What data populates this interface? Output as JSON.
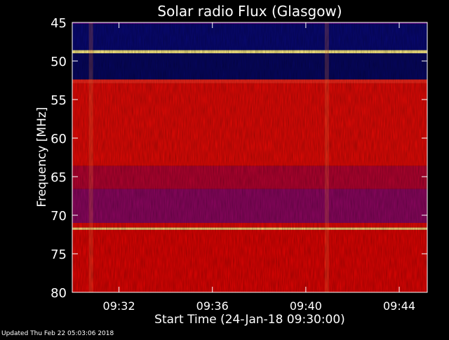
{
  "chart_data": {
    "type": "heatmap",
    "title": "Solar radio Flux (Glasgow)",
    "xlabel": "Start Time (24-Jan-18 09:30:00)",
    "ylabel": "Frequency [MHz]",
    "footer": "Updated Thu Feb 22 05:03:06 2018",
    "x_range_minutes": [
      0,
      15.2
    ],
    "y_range_mhz": [
      45,
      80
    ],
    "x_ticks": [
      {
        "label": "09:32",
        "minutes": 2
      },
      {
        "label": "09:36",
        "minutes": 6
      },
      {
        "label": "09:40",
        "minutes": 10
      },
      {
        "label": "09:44",
        "minutes": 14
      }
    ],
    "y_ticks": [
      {
        "label": "45",
        "mhz": 45
      },
      {
        "label": "50",
        "mhz": 50
      },
      {
        "label": "55",
        "mhz": 55
      },
      {
        "label": "60",
        "mhz": 60
      },
      {
        "label": "65",
        "mhz": 65
      },
      {
        "label": "70",
        "mhz": 70
      },
      {
        "label": "75",
        "mhz": 75
      },
      {
        "label": "80",
        "mhz": 80
      }
    ],
    "frequency_bands": [
      {
        "from_mhz": 45.0,
        "to_mhz": 45.2,
        "intensity": 0.35
      },
      {
        "from_mhz": 45.2,
        "to_mhz": 48.6,
        "intensity": 0.12
      },
      {
        "from_mhz": 48.6,
        "to_mhz": 49.0,
        "intensity": 0.98
      },
      {
        "from_mhz": 49.0,
        "to_mhz": 52.4,
        "intensity": 0.1
      },
      {
        "from_mhz": 52.4,
        "to_mhz": 52.9,
        "intensity": 0.7
      },
      {
        "from_mhz": 52.9,
        "to_mhz": 63.6,
        "intensity": 0.55
      },
      {
        "from_mhz": 63.6,
        "to_mhz": 66.6,
        "intensity": 0.45
      },
      {
        "from_mhz": 66.6,
        "to_mhz": 71.0,
        "intensity": 0.4
      },
      {
        "from_mhz": 71.0,
        "to_mhz": 71.6,
        "intensity": 0.55
      },
      {
        "from_mhz": 71.6,
        "to_mhz": 71.9,
        "intensity": 0.95
      },
      {
        "from_mhz": 71.9,
        "to_mhz": 80.0,
        "intensity": 0.52
      }
    ],
    "vertical_bursts_minutes": [
      0.8,
      10.9
    ],
    "colorscale": [
      "#000000",
      "#1010f0",
      "#e00000",
      "#ff3020",
      "#ffff90"
    ],
    "colors": {
      "background": "#000000",
      "axis": "#ffffff",
      "low": "#1010f0",
      "mid": "#e00000",
      "high": "#ffff90"
    }
  }
}
